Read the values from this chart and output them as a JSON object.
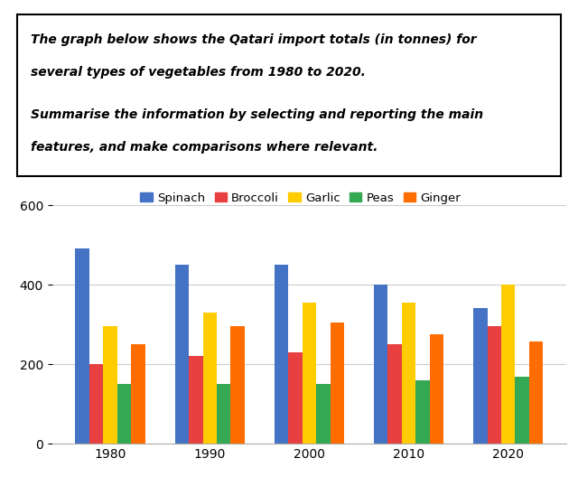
{
  "years": [
    1980,
    1990,
    2000,
    2010,
    2020
  ],
  "series": {
    "Spinach": [
      490,
      450,
      450,
      400,
      340
    ],
    "Broccoli": [
      200,
      220,
      230,
      250,
      295
    ],
    "Garlic": [
      295,
      330,
      355,
      355,
      400
    ],
    "Peas": [
      150,
      150,
      150,
      160,
      168
    ],
    "Ginger": [
      250,
      295,
      305,
      275,
      258
    ]
  },
  "colors": {
    "Spinach": "#4472C4",
    "Broccoli": "#E84040",
    "Garlic": "#FFCC00",
    "Peas": "#34A853",
    "Ginger": "#FF6D00"
  },
  "ylim": [
    0,
    600
  ],
  "yticks": [
    0,
    200,
    400,
    600
  ],
  "text_line1": "The graph below shows the Qatari import totals (in tonnes) for",
  "text_line2": "several types of vegetables from 1980 to 2020.",
  "text_line3": "Summarise the information by selecting and reporting the main",
  "text_line4": "features, and make comparisons where relevant.",
  "background_color": "#ffffff",
  "grid_color": "#cccccc"
}
